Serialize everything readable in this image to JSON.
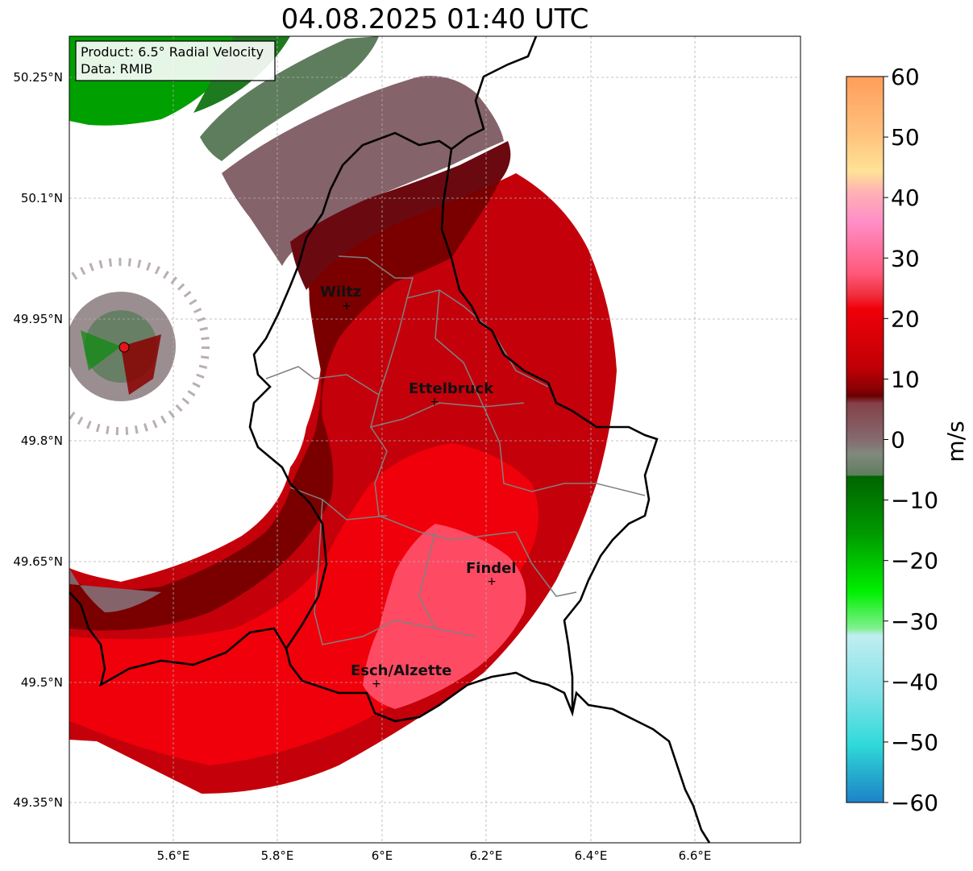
{
  "title": "04.08.2025 01:40 UTC",
  "info_box": {
    "product": "Product: 6.5° Radial Velocity",
    "source": "Data: RMIB"
  },
  "map_extent": {
    "lon": [
      5.4,
      6.8
    ],
    "lat": [
      49.3,
      50.3
    ]
  },
  "lon_ticks": [
    "5.6°E",
    "5.8°E",
    "6°E",
    "6.2°E",
    "6.4°E",
    "6.6°E"
  ],
  "lat_ticks": [
    "50.25°N",
    "50.1°N",
    "49.95°N",
    "49.8°N",
    "49.65°N",
    "49.5°N",
    "49.35°N"
  ],
  "cities": [
    {
      "name": "Wiltz",
      "lon": 5.935,
      "lat": 49.968
    },
    {
      "name": "Ettelbruck",
      "lon": 6.104,
      "lat": 49.849
    },
    {
      "name": "Findel",
      "lon": 6.212,
      "lat": 49.627
    },
    {
      "name": "Esch/Alzette",
      "lon": 5.99,
      "lat": 49.499
    }
  ],
  "radar_site": {
    "lon": 5.506,
    "lat": 49.914,
    "color": "#e8141a"
  },
  "colorbar": {
    "label": "m/s",
    "range": [
      -60,
      60
    ],
    "tick_labels": [
      "60",
      "50",
      "40",
      "30",
      "20",
      "10",
      "0",
      "−10",
      "−20",
      "−30",
      "−40",
      "−50",
      "−60"
    ]
  },
  "colors": {
    "strong_red": "#f0000a",
    "dark_red": "#7a0000",
    "pink": "#ff4a64",
    "mauve": "#85636b",
    "gray_green": "#5e7d5c",
    "green": "#00a000",
    "border": "#000000",
    "canton": "#808080"
  }
}
